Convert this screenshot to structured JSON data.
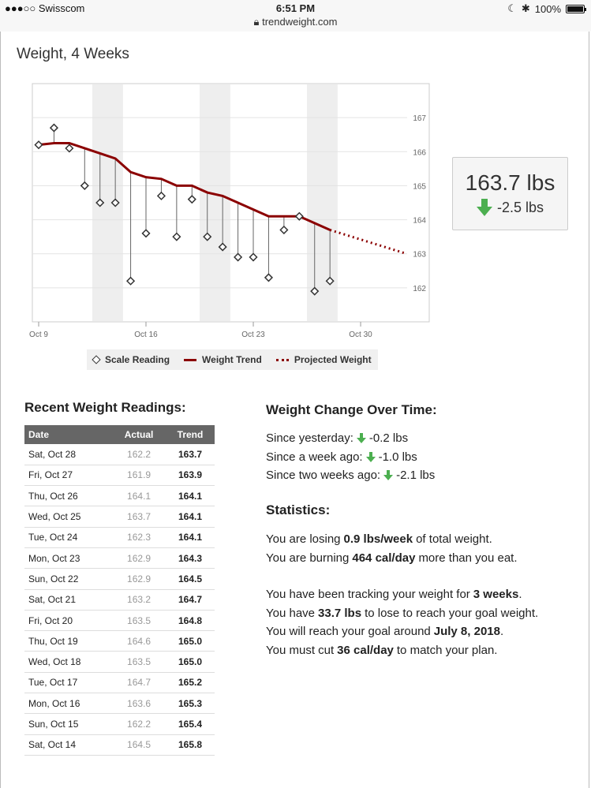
{
  "status_bar": {
    "carrier": "●●●○○ Swisscom",
    "time": "6:51 PM",
    "battery": "100%",
    "url": "trendweight.com"
  },
  "page_title": "Weight, 4 Weeks",
  "colors": {
    "trend": "#8b0000",
    "down_arrow": "#4caf50",
    "header_bg": "#666666"
  },
  "current": {
    "weight": "163.7 lbs",
    "change": "-2.5 lbs"
  },
  "legend": {
    "scale": "Scale Reading",
    "trend": "Weight Trend",
    "projected": "Projected Weight"
  },
  "chart_data": {
    "type": "line",
    "x_ticks": [
      "Oct 9",
      "Oct 16",
      "Oct 23",
      "Oct 30"
    ],
    "y_ticks": [
      162,
      163,
      164,
      165,
      166,
      167
    ],
    "ylim": [
      161.0,
      168.0
    ],
    "series": [
      {
        "name": "Scale Reading",
        "x": [
          "Oct 9",
          "Oct 10",
          "Oct 11",
          "Oct 12",
          "Oct 13",
          "Oct 14",
          "Oct 15",
          "Oct 16",
          "Oct 17",
          "Oct 18",
          "Oct 19",
          "Oct 20",
          "Oct 21",
          "Oct 22",
          "Oct 23",
          "Oct 24",
          "Oct 25",
          "Oct 26",
          "Oct 27",
          "Oct 28"
        ],
        "values": [
          166.2,
          166.7,
          166.1,
          165.0,
          164.5,
          164.5,
          162.2,
          163.6,
          164.7,
          163.5,
          164.6,
          163.5,
          163.2,
          162.9,
          162.9,
          162.3,
          163.7,
          164.1,
          161.9,
          162.2
        ]
      },
      {
        "name": "Weight Trend",
        "x": [
          "Oct 9",
          "Oct 10",
          "Oct 11",
          "Oct 12",
          "Oct 13",
          "Oct 14",
          "Oct 15",
          "Oct 16",
          "Oct 17",
          "Oct 18",
          "Oct 19",
          "Oct 20",
          "Oct 21",
          "Oct 22",
          "Oct 23",
          "Oct 24",
          "Oct 25",
          "Oct 26",
          "Oct 27",
          "Oct 28"
        ],
        "values": [
          166.2,
          166.25,
          166.25,
          166.1,
          165.95,
          165.8,
          165.4,
          165.25,
          165.2,
          165.0,
          165.0,
          164.8,
          164.7,
          164.5,
          164.3,
          164.1,
          164.1,
          164.1,
          163.9,
          163.7
        ]
      },
      {
        "name": "Projected Weight",
        "x": [
          "Oct 28",
          "Nov 2"
        ],
        "values": [
          163.7,
          163.0
        ]
      }
    ],
    "shaded_weekends": [
      [
        "Oct 13",
        "Oct 15"
      ],
      [
        "Oct 20",
        "Oct 22"
      ],
      [
        "Oct 27",
        "Oct 29"
      ]
    ],
    "grid": true
  },
  "readings": {
    "title": "Recent Weight Readings:",
    "headers": [
      "Date",
      "Actual",
      "Trend"
    ],
    "rows": [
      [
        "Sat, Oct 28",
        "162.2",
        "163.7"
      ],
      [
        "Fri, Oct 27",
        "161.9",
        "163.9"
      ],
      [
        "Thu, Oct 26",
        "164.1",
        "164.1"
      ],
      [
        "Wed, Oct 25",
        "163.7",
        "164.1"
      ],
      [
        "Tue, Oct 24",
        "162.3",
        "164.1"
      ],
      [
        "Mon, Oct 23",
        "162.9",
        "164.3"
      ],
      [
        "Sun, Oct 22",
        "162.9",
        "164.5"
      ],
      [
        "Sat, Oct 21",
        "163.2",
        "164.7"
      ],
      [
        "Fri, Oct 20",
        "163.5",
        "164.8"
      ],
      [
        "Thu, Oct 19",
        "164.6",
        "165.0"
      ],
      [
        "Wed, Oct 18",
        "163.5",
        "165.0"
      ],
      [
        "Tue, Oct 17",
        "164.7",
        "165.2"
      ],
      [
        "Mon, Oct 16",
        "163.6",
        "165.3"
      ],
      [
        "Sun, Oct 15",
        "162.2",
        "165.4"
      ],
      [
        "Sat, Oct 14",
        "164.5",
        "165.8"
      ]
    ]
  },
  "change": {
    "title": "Weight Change Over Time:",
    "items": [
      {
        "label": "Since yesterday:",
        "value": "-0.2 lbs"
      },
      {
        "label": "Since a week ago:",
        "value": "-1.0 lbs"
      },
      {
        "label": "Since two weeks ago:",
        "value": "-2.1 lbs"
      }
    ]
  },
  "statistics": {
    "title": "Statistics:",
    "losing": {
      "pre": "You are losing",
      "bold": "0.9 lbs/week",
      "post": "of total weight."
    },
    "burning": {
      "pre": "You are burning",
      "bold": "464 cal/day",
      "post": "more than you eat."
    },
    "tracking": {
      "pre": "You have been tracking your weight for",
      "bold": "3 weeks",
      "post": "."
    },
    "to_lose": {
      "pre": "You have",
      "bold": "33.7 lbs",
      "post": "to lose to reach your goal weight."
    },
    "reach": {
      "pre": "You will reach your goal around",
      "bold": "July 8, 2018",
      "post": "."
    },
    "cut": {
      "pre": "You must cut",
      "bold": "36 cal/day",
      "post": "to match your plan."
    }
  }
}
